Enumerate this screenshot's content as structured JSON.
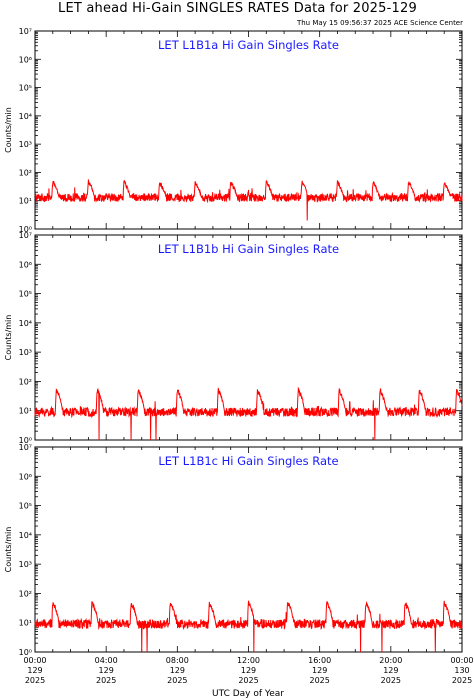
{
  "header": {
    "title": "LET ahead Hi-Gain SINGLES RATES Data for 2025-129",
    "timestamp": "Thu May 15 09:56:37 2025 ACE Science Center"
  },
  "colors": {
    "series": "#ff0000",
    "panel_title": "#1a1aff",
    "axes": "#000000"
  },
  "chart_data": [
    {
      "type": "line",
      "title": "LET L1B1a Hi Gain Singles Rate",
      "ylabel": "Counts/min",
      "yscale": "log",
      "ylim": [
        1,
        10000000
      ],
      "ytick_labels": [
        "10⁰",
        "10¹",
        "10²",
        "10³",
        "10⁴",
        "10⁵",
        "10⁶",
        "10⁷"
      ],
      "xlim": [
        "2025-129 00:00",
        "2025-130 00:00"
      ],
      "baseline": 13,
      "noise": 0.34,
      "periodic_spike_hours": [
        1.0,
        3.0,
        5.0,
        7.0,
        9.0,
        11.0,
        13.0,
        15.0,
        17.0,
        19.0,
        21.0,
        23.0
      ],
      "spike_peak": 45,
      "dropout_hours": [
        15.3
      ],
      "dropout_value": 2
    },
    {
      "type": "line",
      "title": "LET L1B1b Hi Gain Singles Rate",
      "ylabel": "Counts/min",
      "yscale": "log",
      "ylim": [
        1,
        10000000
      ],
      "ytick_labels": [
        "10⁰",
        "10¹",
        "10²",
        "10³",
        "10⁴",
        "10⁵",
        "10⁶",
        "10⁷"
      ],
      "xlim": [
        "2025-129 00:00",
        "2025-130 00:00"
      ],
      "baseline": 9,
      "noise": 0.36,
      "periodic_spike_hours": [
        1.2,
        3.5,
        5.8,
        8.0,
        10.3,
        12.5,
        14.8,
        17.1,
        19.4,
        21.6,
        23.7
      ],
      "spike_peak": 50,
      "dropout_hours": [
        3.6,
        5.4,
        6.5,
        6.8,
        19.1
      ],
      "dropout_value": 1
    },
    {
      "type": "line",
      "title": "LET L1B1c Hi Gain Singles Rate",
      "ylabel": "Counts/min",
      "yscale": "log",
      "ylim": [
        1,
        10000000
      ],
      "ytick_labels": [
        "10⁰",
        "10¹",
        "10²",
        "10³",
        "10⁴",
        "10⁵",
        "10⁶",
        "10⁷"
      ],
      "xlim": [
        "2025-129 00:00",
        "2025-130 00:00"
      ],
      "baseline": 9,
      "noise": 0.36,
      "periodic_spike_hours": [
        1.0,
        3.2,
        5.4,
        7.6,
        9.8,
        12.0,
        14.2,
        16.4,
        18.6,
        20.8,
        23.0
      ],
      "spike_peak": 48,
      "dropout_hours": [
        6.0,
        6.3,
        12.3,
        18.3,
        19.5,
        22.5
      ],
      "dropout_value": 1
    }
  ],
  "x_axis": {
    "label": "UTC Day of Year",
    "ticks": [
      {
        "hour": 0,
        "time": "00:00",
        "doy": "129",
        "year": "2025"
      },
      {
        "hour": 4,
        "time": "04:00",
        "doy": "129",
        "year": "2025"
      },
      {
        "hour": 8,
        "time": "08:00",
        "doy": "129",
        "year": "2025"
      },
      {
        "hour": 12,
        "time": "12:00",
        "doy": "129",
        "year": "2025"
      },
      {
        "hour": 16,
        "time": "16:00",
        "doy": "129",
        "year": "2025"
      },
      {
        "hour": 20,
        "time": "20:00",
        "doy": "129",
        "year": "2025"
      },
      {
        "hour": 24,
        "time": "00:00",
        "doy": "130",
        "year": "2025"
      }
    ]
  }
}
